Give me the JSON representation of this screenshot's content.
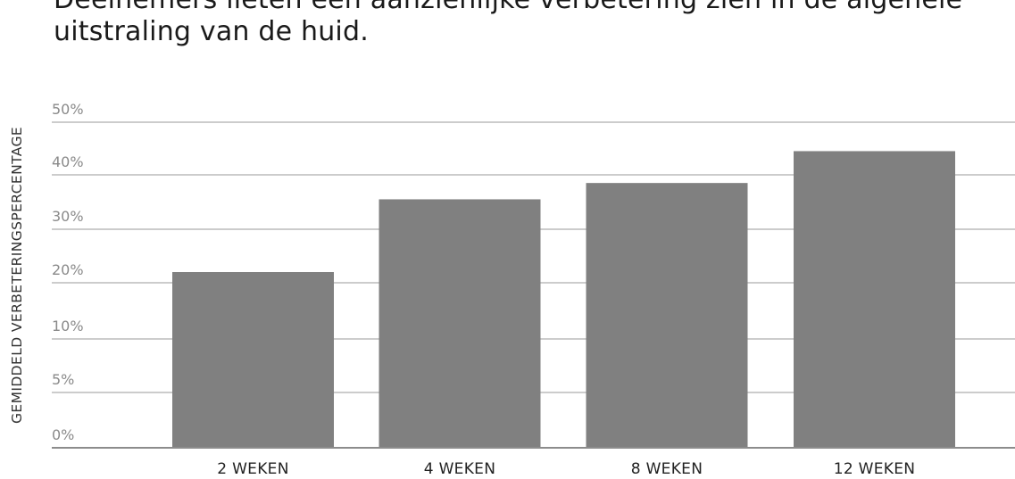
{
  "header": {
    "title_lines": [
      "Deelnemers lieten een aanzienlijke verbetering zien in de algehele",
      "uitstraling van de huid."
    ]
  },
  "colors": {
    "bar": "#808080",
    "grid": "#9a9a9a",
    "axis": "#8c8c8c"
  },
  "chart_data": {
    "type": "bar",
    "title": "Deelnemers lieten een aanzienlijke verbetering zien in de algehele uitstraling van de huid.",
    "xlabel": "",
    "ylabel": "GEMIDDELD VERBETERINGSPERCENTAGE",
    "categories": [
      "2 WEKEN",
      "4 WEKEN",
      "8 WEKEN",
      "12 WEKEN"
    ],
    "values": [
      22,
      35.5,
      38.5,
      44.5
    ],
    "yticks": [
      0,
      5,
      10,
      20,
      30,
      40,
      50
    ],
    "ytick_labels": [
      "0%",
      "5%",
      "10%",
      "20%",
      "30%",
      "40%",
      "50%"
    ],
    "ylim": [
      0,
      50
    ],
    "grid": true
  }
}
